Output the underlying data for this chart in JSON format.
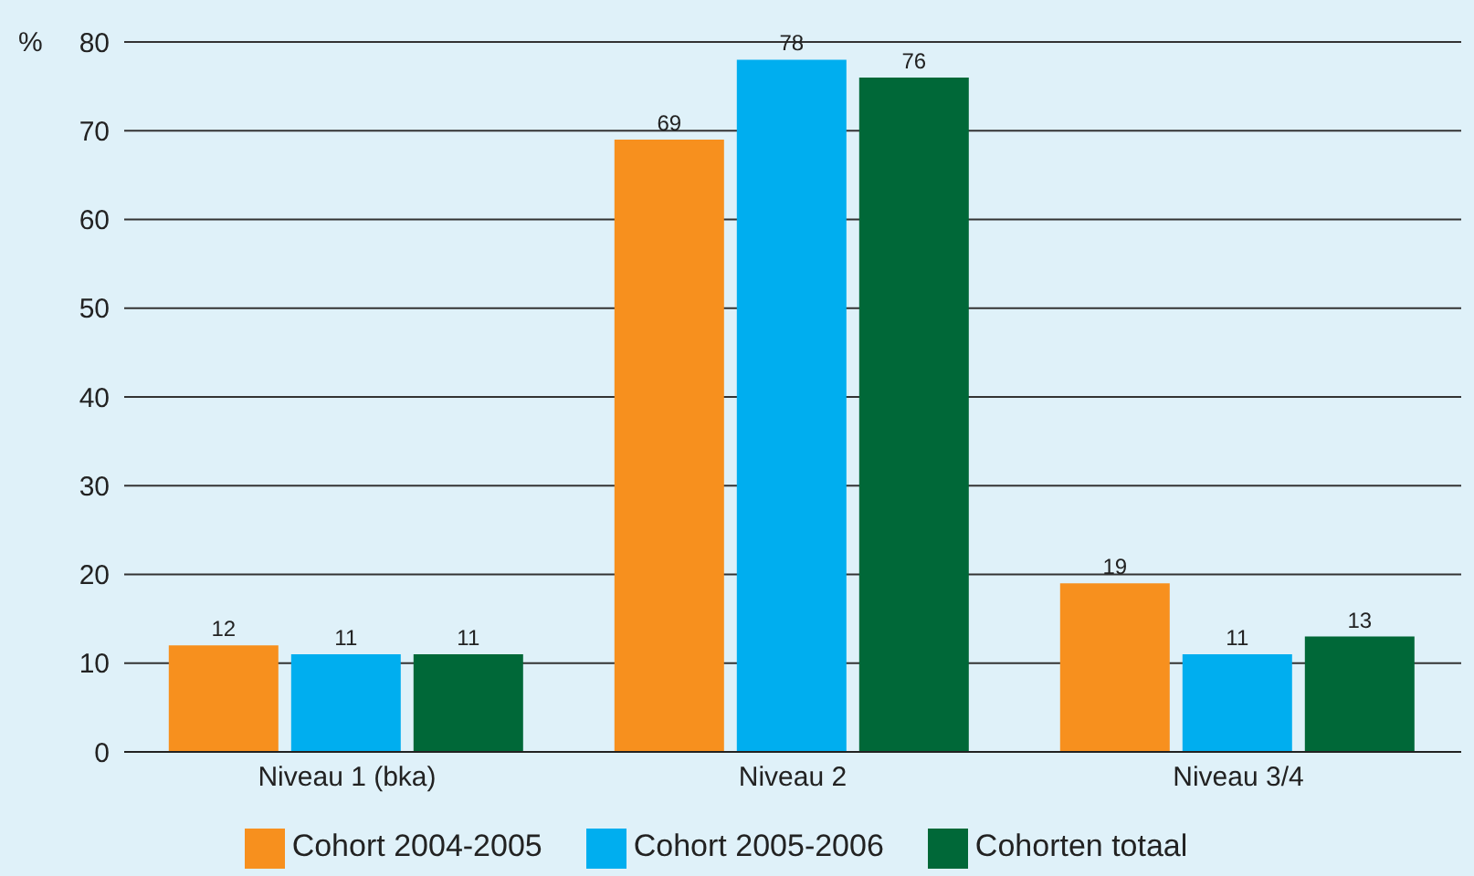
{
  "chart_data": {
    "type": "bar",
    "ylabel": "%",
    "categories": [
      "Niveau 1 (bka)",
      "Niveau 2",
      "Niveau 3/4"
    ],
    "series": [
      {
        "name": "Cohort 2004-2005",
        "color": "#f7901e",
        "values": [
          12,
          69,
          19
        ]
      },
      {
        "name": "Cohort 2005-2006",
        "color": "#00aeef",
        "values": [
          11,
          78,
          11
        ]
      },
      {
        "name": "Cohorten totaal",
        "color": "#006838",
        "values": [
          11,
          76,
          13
        ]
      }
    ],
    "ylim": [
      0,
      80
    ],
    "yticks": [
      0,
      10,
      20,
      30,
      40,
      50,
      60,
      70,
      80
    ],
    "grid": "y",
    "legend": "bottom",
    "data_labels": true
  }
}
